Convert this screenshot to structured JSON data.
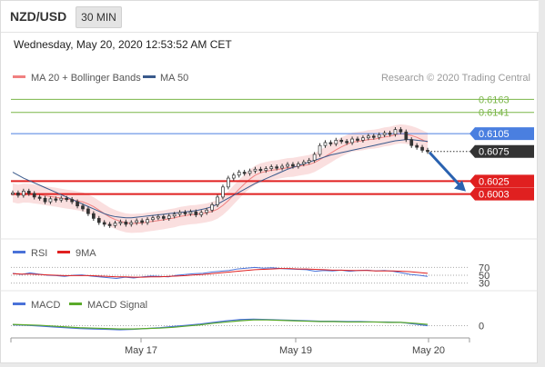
{
  "header": {
    "pair": "NZD/USD",
    "timeframe": "30 MIN"
  },
  "timestamp": "Wednesday, May 20, 2020 12:53:52 AM CET",
  "legend": {
    "bollinger": "MA 20 + Bollinger Bands",
    "ma50": "MA 50",
    "credit": "Research © 2020 Trading Central",
    "rsi": "RSI",
    "rsi_ma": "9MA",
    "macd": "MACD",
    "macd_signal": "MACD Signal"
  },
  "colors": {
    "bollinger": "#f08080",
    "ma50": "#3a5a8c",
    "resistance_green": "#7ab648",
    "pivot_blue": "#4a7fe0",
    "support_red": "#e02020",
    "price_tag": "#333333",
    "arrow": "#2a62b0",
    "rsi": "#4a72d8",
    "rsi_ma": "#e02020",
    "macd": "#4a72d8",
    "macd_signal": "#5aaa2a"
  },
  "chart_data": [
    {
      "type": "candlestick",
      "x_ticks": [
        "May 17",
        "May 19",
        "May 20"
      ],
      "ylim": [
        0.5935,
        0.6185
      ],
      "levels": [
        {
          "value": 0.6163,
          "label": "0.6163",
          "kind": "resistance"
        },
        {
          "value": 0.6141,
          "label": "0.6141",
          "kind": "resistance"
        },
        {
          "value": 0.6105,
          "label": "0.6105",
          "kind": "pivot"
        },
        {
          "value": 0.6025,
          "label": "0.6025",
          "kind": "support"
        },
        {
          "value": 0.6003,
          "label": "0.6003",
          "kind": "support"
        }
      ],
      "last_price": {
        "value": 0.6075,
        "label": "0.6075"
      },
      "close_series": [
        0.6005,
        0.6001,
        0.6008,
        0.6004,
        0.5998,
        0.5996,
        0.599,
        0.5995,
        0.5993,
        0.5996,
        0.5994,
        0.599,
        0.5983,
        0.5978,
        0.597,
        0.5962,
        0.5955,
        0.5952,
        0.595,
        0.5954,
        0.5956,
        0.5952,
        0.5955,
        0.5958,
        0.5955,
        0.596,
        0.5963,
        0.5965,
        0.5962,
        0.5966,
        0.5969,
        0.5972,
        0.597,
        0.5973,
        0.5968,
        0.5972,
        0.5976,
        0.5985,
        0.5998,
        0.6015,
        0.603,
        0.6035,
        0.604,
        0.6038,
        0.6042,
        0.6045,
        0.6043,
        0.6046,
        0.6049,
        0.6047,
        0.605,
        0.6053,
        0.605,
        0.6054,
        0.6057,
        0.606,
        0.607,
        0.6085,
        0.609,
        0.6088,
        0.6094,
        0.6092,
        0.609,
        0.6096,
        0.6094,
        0.6098,
        0.6101,
        0.6099,
        0.6103,
        0.6106,
        0.6104,
        0.6112,
        0.6108,
        0.6095,
        0.6085,
        0.6082,
        0.6077,
        0.6075
      ],
      "ma50": [
        0.604,
        0.6035,
        0.603,
        0.6026,
        0.6022,
        0.6018,
        0.6014,
        0.601,
        0.6006,
        0.6002,
        0.5998,
        0.5994,
        0.599,
        0.5986,
        0.5982,
        0.5978,
        0.5974,
        0.597,
        0.5967,
        0.5965,
        0.5964,
        0.5963,
        0.5963,
        0.5964,
        0.5965,
        0.5966,
        0.5967,
        0.5968,
        0.5969,
        0.597,
        0.5971,
        0.5972,
        0.5973,
        0.5974,
        0.5975,
        0.5977,
        0.5979,
        0.5982,
        0.5986,
        0.5991,
        0.5996,
        0.6001,
        0.6006,
        0.6011,
        0.6016,
        0.6021,
        0.6025,
        0.6029,
        0.6033,
        0.6037,
        0.6041,
        0.6045,
        0.6048,
        0.6051,
        0.6054,
        0.6057,
        0.606,
        0.6063,
        0.6066,
        0.6069,
        0.6071,
        0.6073,
        0.6075,
        0.6077,
        0.6079,
        0.6081,
        0.6083,
        0.6085,
        0.6087,
        0.6089,
        0.6091,
        0.6093,
        0.6094,
        0.6095,
        0.6095,
        0.6094,
        0.6093,
        0.6092
      ]
    },
    {
      "type": "line",
      "name_ref": "RSI",
      "levels": [
        70,
        50,
        30
      ],
      "ylim": [
        20,
        80
      ],
      "series": [
        {
          "name": "RSI",
          "values": [
            55,
            52,
            56,
            53,
            50,
            49,
            47,
            50,
            51,
            48,
            46,
            44,
            42,
            45,
            43,
            46,
            48,
            47,
            46,
            50,
            52,
            54,
            55,
            58,
            60,
            62,
            66,
            68,
            70,
            68,
            69,
            67,
            66,
            65,
            64,
            60,
            62,
            61,
            63,
            60,
            62,
            63,
            61,
            62,
            60,
            56,
            52,
            50,
            47
          ]
        },
        {
          "name": "9MA",
          "values": [
            54,
            53,
            53,
            52,
            51,
            50,
            49,
            49,
            49,
            49,
            48,
            47,
            46,
            46,
            45,
            45,
            46,
            46,
            47,
            48,
            49,
            51,
            52,
            54,
            56,
            58,
            60,
            62,
            64,
            65,
            66,
            67,
            67,
            66,
            66,
            65,
            64,
            63,
            63,
            62,
            62,
            62,
            61,
            61,
            61,
            60,
            59,
            57,
            55
          ]
        }
      ]
    },
    {
      "type": "line",
      "name_ref": "MACD",
      "levels": [
        0
      ],
      "ylim": [
        -0.003,
        0.003
      ],
      "series": [
        {
          "name": "MACD",
          "values": [
            0.0002,
            0.0001,
            -0.0001,
            -0.0003,
            -0.0005,
            -0.0007,
            -0.0008,
            -0.0009,
            -0.001,
            -0.0009,
            -0.0007,
            -0.0005,
            -0.0002,
            0.0001,
            0.0004,
            0.0008,
            0.0012,
            0.0015,
            0.0016,
            0.0015,
            0.0014,
            0.0013,
            0.0012,
            0.0011,
            0.0011,
            0.001,
            0.001,
            0.0009,
            0.0009,
            0.0008,
            0.0004,
            0.0
          ]
        },
        {
          "name": "MACD Signal",
          "values": [
            0.0003,
            0.0002,
            0.0001,
            -0.0001,
            -0.0003,
            -0.0005,
            -0.0006,
            -0.0007,
            -0.0008,
            -0.0008,
            -0.0007,
            -0.0006,
            -0.0004,
            -0.0001,
            0.0002,
            0.0006,
            0.0009,
            0.0012,
            0.0014,
            0.0014,
            0.0013,
            0.0012,
            0.0011,
            0.001,
            0.001,
            0.0009,
            0.0009,
            0.0009,
            0.0008,
            0.0008,
            0.0006,
            0.0003
          ]
        }
      ],
      "y_tick": "0"
    }
  ]
}
